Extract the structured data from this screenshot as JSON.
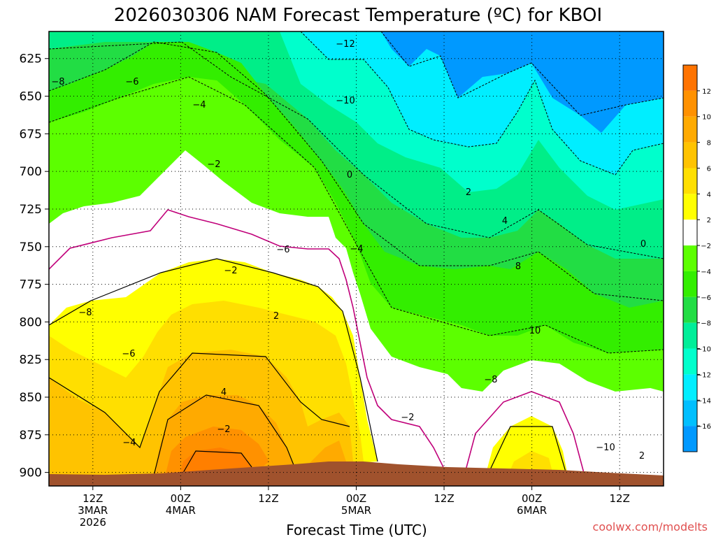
{
  "chart_data": {
    "type": "heatmap",
    "title": "2026030306 NAM Forecast Temperature (ºC) for KBOI",
    "xlabel": "Forecast Time (UTC)",
    "ylabel": "",
    "credit": "coolwx.com/modelts",
    "y_axis": {
      "ticks": [
        "625",
        "650",
        "675",
        "700",
        "725",
        "750",
        "775",
        "800",
        "825",
        "850",
        "875",
        "900"
      ],
      "range": [
        909,
        607
      ]
    },
    "x_axis": {
      "ticks": [
        {
          "line1": "12Z",
          "line2": "3MAR",
          "line3": "2026"
        },
        {
          "line1": "00Z",
          "line2": "4MAR",
          "line3": ""
        },
        {
          "line1": "12Z",
          "line2": "",
          "line3": ""
        },
        {
          "line1": "00Z",
          "line2": "5MAR",
          "line3": ""
        },
        {
          "line1": "12Z",
          "line2": "",
          "line3": ""
        },
        {
          "line1": "00Z",
          "line2": "6MAR",
          "line3": ""
        },
        {
          "line1": "12Z",
          "line2": "",
          "line3": ""
        }
      ],
      "hours": [
        6,
        18,
        30,
        42,
        54,
        66,
        78
      ],
      "range": [
        0,
        84
      ]
    },
    "colorbar": {
      "labels": [
        "12",
        "10",
        "8",
        "6",
        "4",
        "2",
        "−2",
        "−4",
        "−6",
        "−8",
        "−10",
        "−12",
        "−14",
        "−16"
      ],
      "colors": [
        "#ff7300",
        "#ff9100",
        "#ffaa00",
        "#ffc300",
        "#ffdf00",
        "#ffff00",
        "#ffffff",
        "#5cff00",
        "#33ee00",
        "#22dd44",
        "#00ee99",
        "#00ffcc",
        "#00eeff",
        "#00bfff",
        "#0099ff"
      ]
    },
    "contour_labels": [
      "−12",
      "−10",
      "−8",
      "−6",
      "−4",
      "−2",
      "0",
      "2",
      "4",
      "8",
      "10",
      "−8",
      "−6",
      "−4",
      "−2",
      "−10",
      "−8",
      "−6",
      "−4",
      "−2",
      "2",
      "4",
      "−2",
      "0",
      "2"
    ],
    "grid": true
  }
}
